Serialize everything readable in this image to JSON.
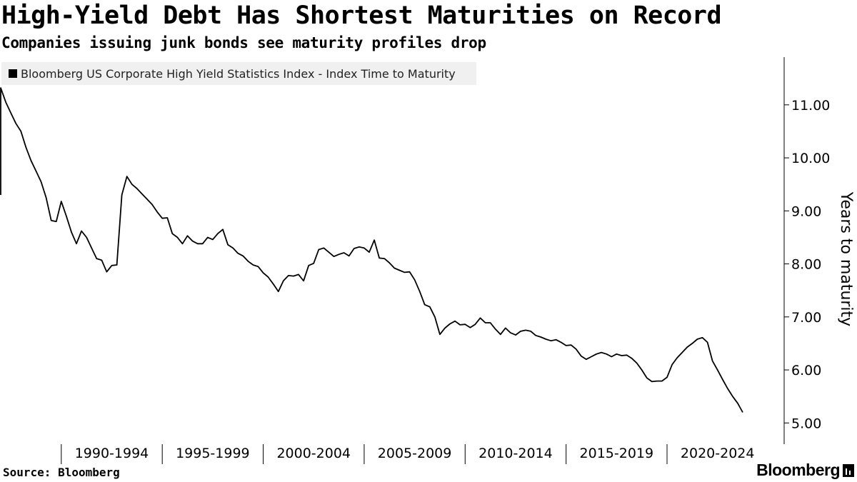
{
  "header": {
    "title": "High-Yield Debt Has Shortest Maturities on Record",
    "subtitle": "Companies issuing junk bonds see maturity profiles drop"
  },
  "footer": {
    "source": "Source: Bloomberg",
    "brand": "Bloomberg"
  },
  "colors": {
    "line": "#000000",
    "axis": "#000000",
    "legend_bg": "#f0f0f0"
  },
  "chart_data": {
    "type": "line",
    "title": "High-Yield Debt Has Shortest Maturities on Record",
    "subtitle": "Companies issuing junk bonds see maturity profiles drop",
    "ylabel": "Years to maturity",
    "xlabel": "",
    "ylim": [
      4.6,
      11.9
    ],
    "xlim": [
      1987,
      2025.8
    ],
    "yticks": [
      5,
      6,
      7,
      8,
      9,
      10,
      11
    ],
    "ytick_labels": [
      "5.00",
      "6.00",
      "7.00",
      "8.00",
      "9.00",
      "10.00",
      "11.00"
    ],
    "x_period_labels": [
      "1990-1994",
      "1995-1999",
      "2000-2004",
      "2005-2009",
      "2010-2014",
      "2015-2019",
      "2020-2024"
    ],
    "x_period_starts": [
      1990,
      1995,
      2000,
      2005,
      2010,
      2015,
      2020
    ],
    "grid": false,
    "legend_position": "top-left",
    "series": [
      {
        "name": "Bloomberg US Corporate High Yield Statistics Index - Index Time to Maturity",
        "x": [
          1987.0,
          1987.0,
          1987.25,
          1987.5,
          1987.75,
          1988.0,
          1988.25,
          1988.5,
          1988.75,
          1989.0,
          1989.25,
          1989.5,
          1989.75,
          1990.0,
          1990.25,
          1990.5,
          1990.75,
          1991.0,
          1991.25,
          1991.5,
          1991.75,
          1992.0,
          1992.25,
          1992.5,
          1992.75,
          1993.0,
          1993.25,
          1993.5,
          1993.75,
          1994.0,
          1994.25,
          1994.5,
          1994.75,
          1995.0,
          1995.25,
          1995.5,
          1995.75,
          1996.0,
          1996.25,
          1996.5,
          1996.75,
          1997.0,
          1997.25,
          1997.5,
          1997.75,
          1998.0,
          1998.25,
          1998.5,
          1998.75,
          1999.0,
          1999.25,
          1999.5,
          1999.75,
          2000.0,
          2000.25,
          2000.5,
          2000.75,
          2001.0,
          2001.25,
          2001.5,
          2001.75,
          2002.0,
          2002.25,
          2002.5,
          2002.75,
          2003.0,
          2003.25,
          2003.5,
          2003.75,
          2004.0,
          2004.25,
          2004.5,
          2004.75,
          2005.0,
          2005.25,
          2005.5,
          2005.75,
          2006.0,
          2006.25,
          2006.5,
          2006.75,
          2007.0,
          2007.25,
          2007.5,
          2007.75,
          2008.0,
          2008.25,
          2008.5,
          2008.75,
          2009.0,
          2009.25,
          2009.5,
          2009.75,
          2010.0,
          2010.25,
          2010.5,
          2010.75,
          2011.0,
          2011.25,
          2011.5,
          2011.75,
          2012.0,
          2012.25,
          2012.5,
          2012.75,
          2013.0,
          2013.25,
          2013.5,
          2013.75,
          2014.0,
          2014.25,
          2014.5,
          2014.75,
          2015.0,
          2015.25,
          2015.5,
          2015.75,
          2016.0,
          2016.25,
          2016.5,
          2016.75,
          2017.0,
          2017.25,
          2017.5,
          2017.75,
          2018.0,
          2018.25,
          2018.5,
          2018.75,
          2019.0,
          2019.25,
          2019.5,
          2019.75,
          2020.0,
          2020.25,
          2020.5,
          2020.75,
          2021.0,
          2021.25,
          2021.5,
          2021.75,
          2022.0,
          2022.25,
          2022.5,
          2022.75,
          2023.0,
          2023.25,
          2023.5,
          2023.75
        ],
        "values": [
          9.3,
          11.32,
          11.05,
          10.85,
          10.65,
          10.5,
          10.2,
          9.95,
          9.75,
          9.55,
          9.25,
          8.82,
          8.8,
          9.18,
          8.9,
          8.6,
          8.38,
          8.62,
          8.5,
          8.3,
          8.1,
          8.07,
          7.85,
          7.97,
          7.98,
          9.3,
          9.65,
          9.5,
          9.42,
          9.32,
          9.22,
          9.12,
          8.98,
          8.86,
          8.87,
          8.57,
          8.5,
          8.38,
          8.53,
          8.43,
          8.38,
          8.38,
          8.5,
          8.46,
          8.57,
          8.65,
          8.36,
          8.3,
          8.2,
          8.15,
          8.05,
          7.98,
          7.95,
          7.83,
          7.75,
          7.62,
          7.48,
          7.68,
          7.78,
          7.77,
          7.8,
          7.68,
          7.97,
          8.01,
          8.27,
          8.3,
          8.22,
          8.14,
          8.18,
          8.21,
          8.15,
          8.29,
          8.32,
          8.3,
          8.22,
          8.45,
          8.11,
          8.1,
          8.02,
          7.92,
          7.88,
          7.84,
          7.85,
          7.7,
          7.48,
          7.23,
          7.19,
          7.0,
          6.67,
          6.79,
          6.87,
          6.92,
          6.85,
          6.86,
          6.8,
          6.86,
          6.98,
          6.89,
          6.89,
          6.77,
          6.67,
          6.79,
          6.7,
          6.66,
          6.73,
          6.75,
          6.73,
          6.65,
          6.62,
          6.58,
          6.55,
          6.57,
          6.52,
          6.46,
          6.47,
          6.39,
          6.26,
          6.2,
          6.25,
          6.3,
          6.33,
          6.3,
          6.25,
          6.3,
          6.27,
          6.28,
          6.22,
          6.13,
          6.0,
          5.85,
          5.78,
          5.79,
          5.79,
          5.86,
          6.1,
          6.23,
          6.33,
          6.43,
          6.5,
          6.58,
          6.61,
          6.52,
          6.17,
          6.0,
          5.82,
          5.65,
          5.5,
          5.37,
          5.2
        ]
      }
    ]
  }
}
